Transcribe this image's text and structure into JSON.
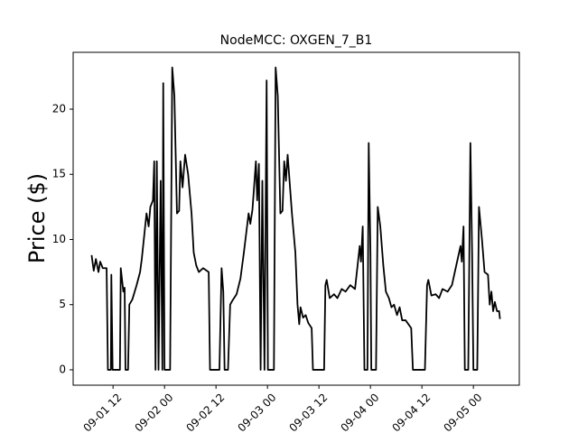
{
  "chart_data": {
    "type": "line",
    "title": "NodeMCC: OXGEN_7_B1",
    "y_label": "Price ($)",
    "x": [
      31,
      31.5,
      32,
      32.6,
      33,
      33.6,
      34.5,
      34.8,
      35.5,
      35.6,
      35.9,
      37.6,
      37.8,
      38.4,
      38.7,
      38.9,
      39.5,
      39.8,
      40.5,
      41.5,
      42.3,
      42.7,
      43.8,
      44.3,
      44.7,
      45.3,
      45.6,
      45.9,
      46.2,
      46.6,
      47.1,
      47.5,
      47.7,
      48,
      49.3,
      49.8,
      50.3,
      50.9,
      51.4,
      51.7,
      52.2,
      52.8,
      53.5,
      54.3,
      54.8,
      55.4,
      56,
      57,
      58.3,
      58.6,
      60.8,
      61.3,
      61.7,
      62,
      62.8,
      63.3,
      63.8,
      64.8,
      65.7,
      66.5,
      67.6,
      68,
      68.5,
      69.3,
      69.6,
      70,
      70.4,
      70.8,
      71.3,
      71.8,
      72.1,
      73.5,
      73.9,
      74.4,
      75,
      75.5,
      75.9,
      76.3,
      76.7,
      77.7,
      78.5,
      79,
      79.4,
      79.7,
      80.3,
      80.9,
      81.5,
      82.3,
      82.6,
      85.2,
      85.5,
      85.8,
      86.5,
      87.5,
      88.3,
      89.3,
      90.2,
      91.3,
      92.4,
      93,
      93.5,
      93.8,
      94.2,
      94.6,
      95.3,
      95.6,
      96,
      96.2,
      97.3,
      97.7,
      98.3,
      99,
      99.6,
      100.3,
      100.9,
      101.5,
      102.2,
      102.8,
      103.4,
      104.2,
      105.5,
      105.9,
      108.7,
      109.2,
      109.5,
      110.2,
      111.2,
      112,
      112.8,
      114,
      115,
      116,
      117,
      117.3,
      117.7,
      118,
      118.8,
      119.3,
      119.7,
      120,
      120.9,
      121.3,
      122,
      122.6,
      123.4,
      123.8,
      124.2,
      124.6,
      125,
      125.5,
      126,
      126.2
    ],
    "series": [
      {
        "color": "#000000",
        "values": [
          8.8,
          7.6,
          8.5,
          7.5,
          8.3,
          7.8,
          7.8,
          0,
          0,
          7.3,
          0,
          0,
          7.8,
          6,
          6.3,
          0,
          0,
          5,
          5.4,
          6.5,
          7.5,
          8.5,
          12,
          11,
          12.5,
          13,
          16,
          0,
          16,
          0,
          14.5,
          0,
          22,
          0,
          0,
          23.2,
          21,
          12,
          12.2,
          16,
          14,
          16.5,
          15,
          12,
          9,
          8,
          7.5,
          7.8,
          7.5,
          0,
          0,
          7.8,
          6,
          0,
          0,
          5,
          5.3,
          5.8,
          7,
          9,
          12,
          11.2,
          12.3,
          16,
          13,
          15.8,
          0,
          14.5,
          0,
          22.2,
          0,
          0,
          23.2,
          21,
          12,
          12.2,
          16,
          14.5,
          16.5,
          12,
          9,
          5,
          3.5,
          4.8,
          4,
          4.2,
          3.6,
          3.2,
          0,
          0,
          6.5,
          6.9,
          5.5,
          5.8,
          5.5,
          6.2,
          6,
          6.5,
          6.2,
          8,
          9.5,
          8.3,
          11,
          0,
          0,
          17.4,
          9,
          0,
          0,
          12.5,
          11,
          8,
          6,
          5.5,
          4.8,
          5,
          4.2,
          4.8,
          3.8,
          3.8,
          3.2,
          0,
          0,
          6.5,
          6.9,
          5.7,
          5.8,
          5.5,
          6.2,
          6,
          6.5,
          8,
          9.5,
          8.3,
          11,
          0,
          0,
          17.4,
          9,
          0,
          0,
          12.5,
          10,
          7.5,
          7.3,
          5,
          6,
          4.5,
          5.2,
          4.5,
          4.5,
          3.9
        ]
      }
    ],
    "xlim": [
      26.7,
      130.7
    ],
    "xticks": [
      {
        "value": 36,
        "label": "09-01 12"
      },
      {
        "value": 48,
        "label": "09-02 00"
      },
      {
        "value": 60,
        "label": "09-02 12"
      },
      {
        "value": 72,
        "label": "09-03 00"
      },
      {
        "value": 84,
        "label": "09-03 12"
      },
      {
        "value": 96,
        "label": "09-04 00"
      },
      {
        "value": 108,
        "label": "09-04 12"
      },
      {
        "value": 120,
        "label": "09-05 00"
      }
    ],
    "ylim": [
      -1.18,
      24.36
    ],
    "yticks": [
      0,
      5,
      10,
      15,
      20
    ]
  }
}
